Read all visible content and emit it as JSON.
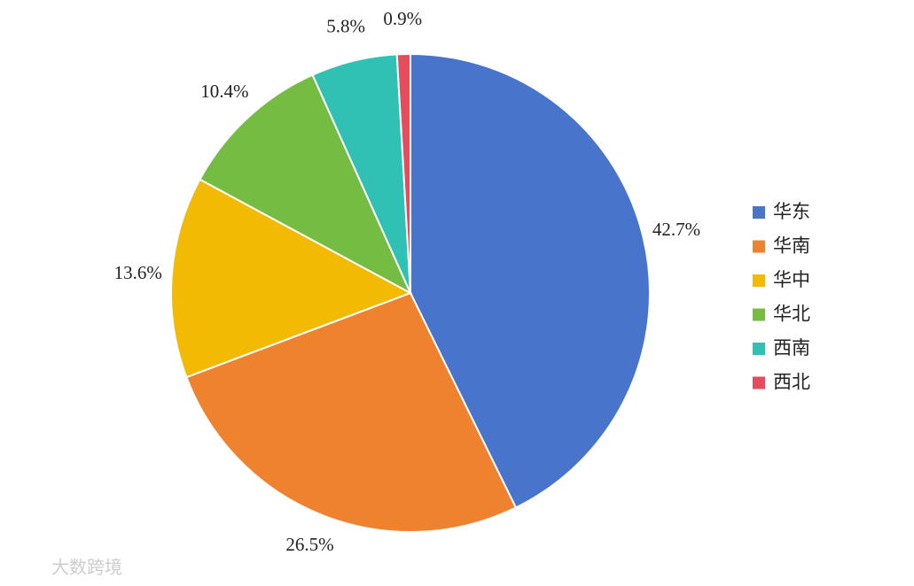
{
  "chart_data": {
    "type": "pie",
    "categories": [
      "华东",
      "华南",
      "华中",
      "华北",
      "西南",
      "西北"
    ],
    "values": [
      42.7,
      26.5,
      13.6,
      10.4,
      5.8,
      0.9
    ],
    "value_labels": [
      "42.7%",
      "26.5%",
      "13.6%",
      "10.4%",
      "5.8%",
      "0.9%"
    ],
    "colors": [
      "#4874cb",
      "#ee822f",
      "#f2ba02",
      "#75bd42",
      "#30c0b4",
      "#e54c5e"
    ],
    "legend": "right",
    "watermark": "大数跨境"
  }
}
